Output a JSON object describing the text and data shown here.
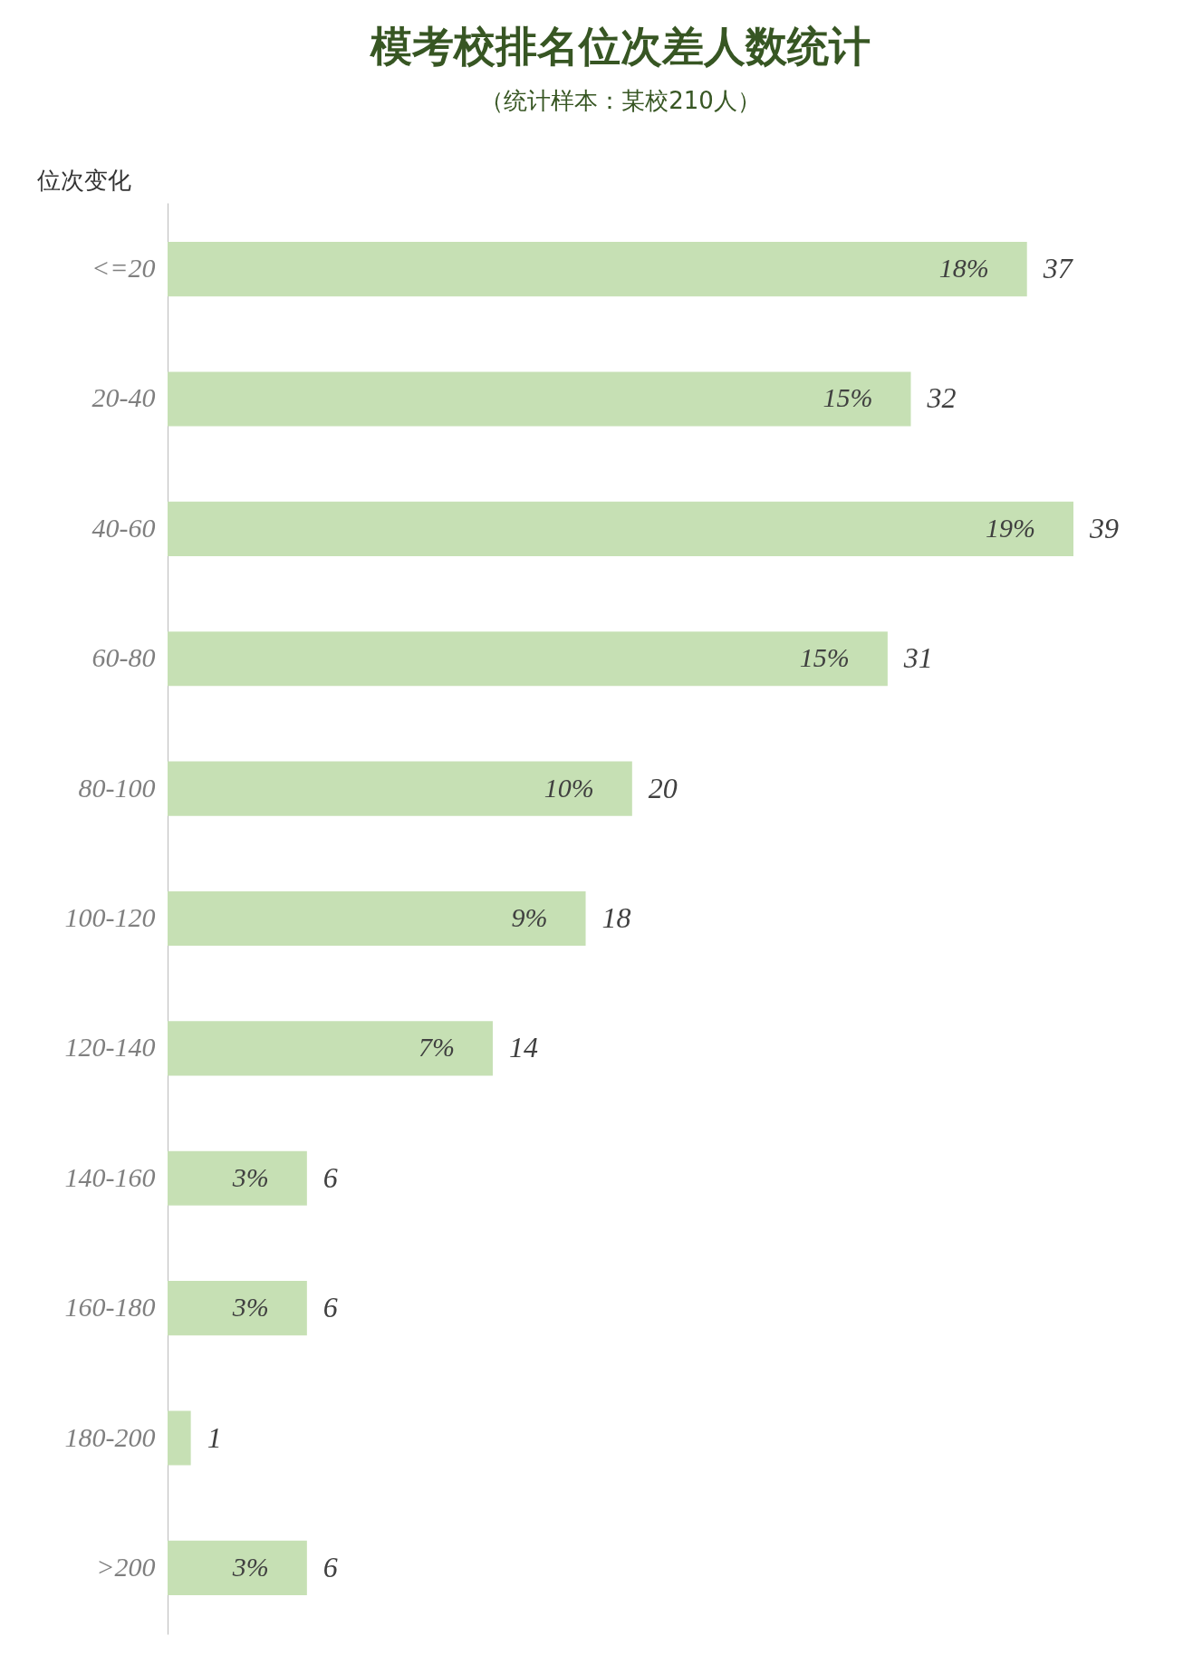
{
  "chart_data": {
    "type": "bar",
    "orientation": "horizontal",
    "title": "模考校排名位次差人数统计",
    "subtitle": "（统计样本：某校210人）",
    "ylabel": "位次变化",
    "categories": [
      "<=20",
      "20-40",
      "40-60",
      "60-80",
      "80-100",
      "100-120",
      "120-140",
      "140-160",
      "160-180",
      "180-200",
      ">200"
    ],
    "values": [
      37,
      32,
      39,
      31,
      20,
      18,
      14,
      6,
      6,
      1,
      6
    ],
    "color": "#c6e0b4",
    "data_labels": true,
    "grid": false,
    "annotations": [
      {
        "text": "18%",
        "x": 37,
        "y": "<=20"
      },
      {
        "text": "15%",
        "x": 32,
        "y": "20-40"
      },
      {
        "text": "19%",
        "x": 39,
        "y": "40-60"
      },
      {
        "text": "15%",
        "x": 31,
        "y": "60-80"
      },
      {
        "text": "10%",
        "x": 20,
        "y": "80-100"
      },
      {
        "text": "9%",
        "x": 18,
        "y": "100-120"
      },
      {
        "text": "7%",
        "x": 14,
        "y": "120-140"
      },
      {
        "text": "3%",
        "x": 6,
        "y": "140-160"
      },
      {
        "text": "3%",
        "x": 6,
        "y": "160-180"
      },
      {
        "text": "3%",
        "x": 6,
        "y": ">200"
      }
    ]
  }
}
